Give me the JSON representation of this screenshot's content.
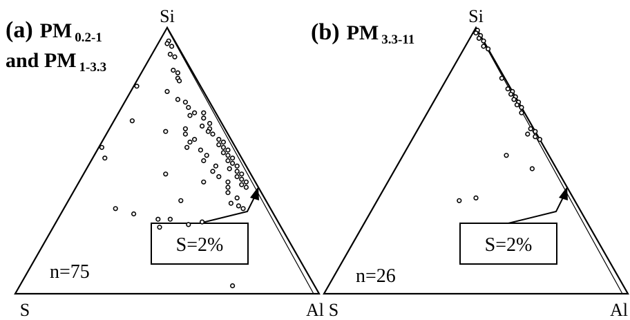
{
  "chart_data": [
    {
      "type": "scatter",
      "ternary": true,
      "panel_label": "(a)",
      "title_line1_main": "PM",
      "title_line1_sub": "0.2-1",
      "title_line2_prefix": "and PM",
      "title_line2_sub": "1-3.3",
      "vertices": {
        "top": "Si",
        "left": "S",
        "right": "Al"
      },
      "n_label": "n=75",
      "annotation": "S=2%",
      "points_note": "ternary fractions [Si, S, Al]",
      "points": [
        [
          0.95,
          0.02,
          0.03
        ],
        [
          0.94,
          0.03,
          0.03
        ],
        [
          0.93,
          0.02,
          0.05
        ],
        [
          0.9,
          0.04,
          0.06
        ],
        [
          0.89,
          0.03,
          0.08
        ],
        [
          0.84,
          0.06,
          0.1
        ],
        [
          0.83,
          0.05,
          0.12
        ],
        [
          0.81,
          0.06,
          0.13
        ],
        [
          0.78,
          0.21,
          0.01
        ],
        [
          0.8,
          0.06,
          0.14
        ],
        [
          0.76,
          0.12,
          0.12
        ],
        [
          0.73,
          0.1,
          0.17
        ],
        [
          0.72,
          0.08,
          0.2
        ],
        [
          0.7,
          0.08,
          0.22
        ],
        [
          0.68,
          0.07,
          0.25
        ],
        [
          0.67,
          0.09,
          0.24
        ],
        [
          0.68,
          0.04,
          0.28
        ],
        [
          0.66,
          0.05,
          0.29
        ],
        [
          0.64,
          0.04,
          0.32
        ],
        [
          0.63,
          0.07,
          0.3
        ],
        [
          0.62,
          0.05,
          0.33
        ],
        [
          0.61,
          0.06,
          0.33
        ],
        [
          0.6,
          0.05,
          0.35
        ],
        [
          0.58,
          0.04,
          0.38
        ],
        [
          0.57,
          0.03,
          0.4
        ],
        [
          0.56,
          0.05,
          0.39
        ],
        [
          0.55,
          0.04,
          0.41
        ],
        [
          0.54,
          0.03,
          0.43
        ],
        [
          0.53,
          0.05,
          0.42
        ],
        [
          0.52,
          0.04,
          0.44
        ],
        [
          0.51,
          0.03,
          0.46
        ],
        [
          0.5,
          0.05,
          0.45
        ],
        [
          0.49,
          0.04,
          0.47
        ],
        [
          0.48,
          0.03,
          0.49
        ],
        [
          0.47,
          0.06,
          0.47
        ],
        [
          0.46,
          0.04,
          0.5
        ],
        [
          0.45,
          0.03,
          0.52
        ],
        [
          0.44,
          0.05,
          0.51
        ],
        [
          0.43,
          0.04,
          0.53
        ],
        [
          0.42,
          0.03,
          0.55
        ],
        [
          0.41,
          0.05,
          0.54
        ],
        [
          0.4,
          0.04,
          0.56
        ],
        [
          0.62,
          0.13,
          0.25
        ],
        [
          0.6,
          0.14,
          0.26
        ],
        [
          0.58,
          0.12,
          0.3
        ],
        [
          0.57,
          0.14,
          0.29
        ],
        [
          0.55,
          0.16,
          0.29
        ],
        [
          0.54,
          0.12,
          0.34
        ],
        [
          0.52,
          0.11,
          0.37
        ],
        [
          0.5,
          0.13,
          0.37
        ],
        [
          0.48,
          0.1,
          0.42
        ],
        [
          0.46,
          0.12,
          0.42
        ],
        [
          0.44,
          0.11,
          0.45
        ],
        [
          0.42,
          0.09,
          0.49
        ],
        [
          0.4,
          0.1,
          0.5
        ],
        [
          0.38,
          0.11,
          0.51
        ],
        [
          0.36,
          0.09,
          0.55
        ],
        [
          0.34,
          0.12,
          0.54
        ],
        [
          0.33,
          0.1,
          0.57
        ],
        [
          0.65,
          0.29,
          0.06
        ],
        [
          0.61,
          0.2,
          0.19
        ],
        [
          0.55,
          0.44,
          0.01
        ],
        [
          0.51,
          0.45,
          0.04
        ],
        [
          0.45,
          0.28,
          0.27
        ],
        [
          0.42,
          0.17,
          0.41
        ],
        [
          0.32,
          0.51,
          0.17
        ],
        [
          0.3,
          0.46,
          0.24
        ],
        [
          0.28,
          0.39,
          0.33
        ],
        [
          0.28,
          0.35,
          0.37
        ],
        [
          0.26,
          0.3,
          0.44
        ],
        [
          0.27,
          0.25,
          0.48
        ],
        [
          0.32,
          0.09,
          0.59
        ],
        [
          0.25,
          0.4,
          0.35
        ],
        [
          0.35,
          0.28,
          0.37
        ],
        [
          0.03,
          0.27,
          0.7
        ]
      ]
    },
    {
      "type": "scatter",
      "ternary": true,
      "panel_label": "(b)",
      "title_line1_main": "PM",
      "title_line1_sub": "3.3-11",
      "vertices": {
        "top": "Si",
        "left": "S",
        "right": "Al"
      },
      "n_label": "n=26",
      "annotation": "S=2%",
      "points_note": "ternary fractions [Si, S, Al]",
      "points": [
        [
          0.99,
          0.0,
          0.01
        ],
        [
          0.98,
          0.01,
          0.01
        ],
        [
          0.97,
          0.0,
          0.03
        ],
        [
          0.96,
          0.01,
          0.03
        ],
        [
          0.95,
          0.0,
          0.05
        ],
        [
          0.93,
          0.01,
          0.06
        ],
        [
          0.92,
          0.0,
          0.08
        ],
        [
          0.81,
          0.01,
          0.18
        ],
        [
          0.77,
          0.01,
          0.22
        ],
        [
          0.76,
          0.0,
          0.24
        ],
        [
          0.75,
          0.01,
          0.24
        ],
        [
          0.74,
          0.0,
          0.26
        ],
        [
          0.73,
          0.01,
          0.26
        ],
        [
          0.72,
          0.0,
          0.28
        ],
        [
          0.71,
          0.01,
          0.28
        ],
        [
          0.7,
          0.0,
          0.3
        ],
        [
          0.68,
          0.01,
          0.31
        ],
        [
          0.62,
          0.01,
          0.37
        ],
        [
          0.61,
          0.0,
          0.39
        ],
        [
          0.59,
          0.01,
          0.4
        ],
        [
          0.58,
          0.0,
          0.42
        ],
        [
          0.6,
          0.03,
          0.37
        ],
        [
          0.52,
          0.14,
          0.34
        ],
        [
          0.47,
          0.08,
          0.45
        ],
        [
          0.35,
          0.38,
          0.27
        ],
        [
          0.36,
          0.32,
          0.32
        ]
      ]
    }
  ]
}
